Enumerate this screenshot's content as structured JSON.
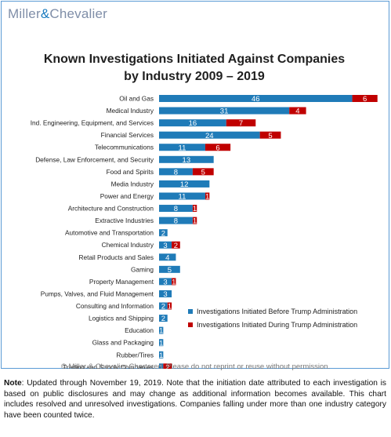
{
  "header": {
    "logo_left": "Miller",
    "logo_amp": "&",
    "logo_right": "Chevalier"
  },
  "chart_data": {
    "type": "bar",
    "orientation": "horizontal",
    "stacked": true,
    "title_line1": "Known Investigations Initiated Against Companies",
    "title_line2": "by Industry 2009 – 2019",
    "categories": [
      "Oil and Gas",
      "Medical Industry",
      "Ind. Engineering, Equipment, and Services",
      "Financial Services",
      "Telecommunications",
      "Defense, Law Enforcement, and Security",
      "Food and Spirits",
      "Media Industry",
      "Power and Energy",
      "Architecture and Construction",
      "Extractive Industries",
      "Automotive and Transportation",
      "Chemical Industry",
      "Retail Products and Sales",
      "Gaming",
      "Property Management",
      "Pumps, Valves, and Fluid Management",
      "Consulting and Information",
      "Logistics and Shipping",
      "Education",
      "Glass and Packaging",
      "Rubber/Tires",
      "Trading and Supply Companies"
    ],
    "series": [
      {
        "name": "Investigations Initiated Before Trump Administration",
        "color": "#1f7bb8",
        "values": [
          46,
          31,
          16,
          24,
          11,
          13,
          8,
          12,
          11,
          8,
          8,
          2,
          3,
          4,
          5,
          3,
          3,
          2,
          2,
          1,
          1,
          1,
          1
        ]
      },
      {
        "name": "Investigations Initiated During Trump Administration",
        "color": "#c00000",
        "values": [
          6,
          4,
          7,
          5,
          6,
          null,
          5,
          null,
          1,
          1,
          1,
          null,
          2,
          null,
          null,
          1,
          null,
          1,
          null,
          null,
          null,
          null,
          2
        ]
      }
    ],
    "legend_position": "bottom-right",
    "grid": false
  },
  "footer": {
    "copyright": "© Miller & Chevalier Chartered. Please do not reprint or reuse without permission.",
    "note_label": "Note",
    "note_text": ": Updated through November 19, 2019. Note that the initiation date attributed to each investigation is based on public disclosures and may change as additional information becomes available. This chart includes resolved and unresolved investigations. Companies falling under more than one industry category have been counted twice."
  }
}
